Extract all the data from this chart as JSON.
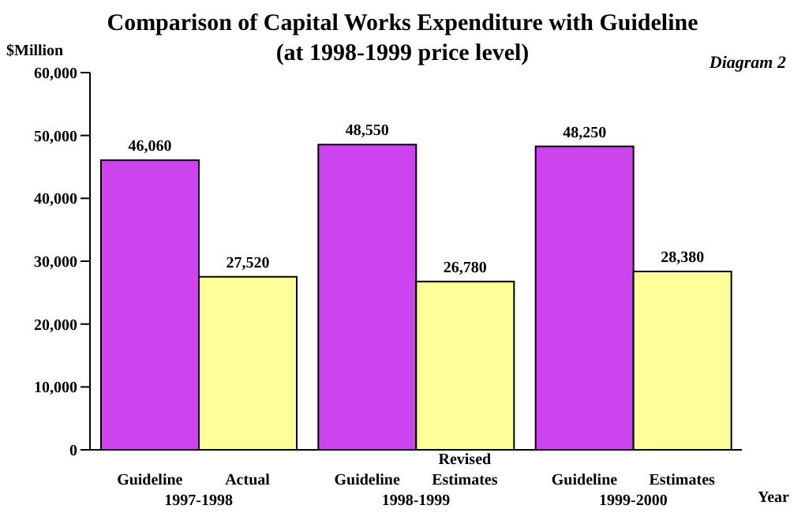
{
  "chart_data": {
    "type": "bar",
    "title": "Comparison of Capital Works Expenditure with Guideline",
    "subtitle": "(at 1998-1999 price level)",
    "ylabel": "$Million",
    "xlabel": "Year",
    "categories": [
      "1997-1998",
      "1998-1999",
      "1999-2000"
    ],
    "series": [
      {
        "name": "Guideline",
        "color": "#cc44ee",
        "values": [
          46060,
          48550,
          48250
        ],
        "value_labels": [
          "46,060",
          "48,550",
          "48,250"
        ]
      },
      {
        "color": "#ffff99",
        "values": [
          27520,
          26780,
          28380
        ],
        "value_labels": [
          "27,520",
          "26,780",
          "28,380"
        ]
      }
    ],
    "annotations": [
      "Diagram 2",
      "Actual",
      "Revised Estimates",
      "Estimates"
    ],
    "ylim": [
      0,
      60000
    ],
    "yticks": [
      0,
      {
        "value": 10000,
        "label": "10,000"
      },
      {
        "value": 20000,
        "label": "20,000"
      },
      {
        "value": 30000,
        "label": "30,000"
      },
      {
        "value": 40000,
        "label": "40,000"
      },
      {
        "value": 50000,
        "label": "50,000"
      },
      {
        "value": 60000,
        "label": "60,000"
      }
    ],
    "grid": false
  }
}
